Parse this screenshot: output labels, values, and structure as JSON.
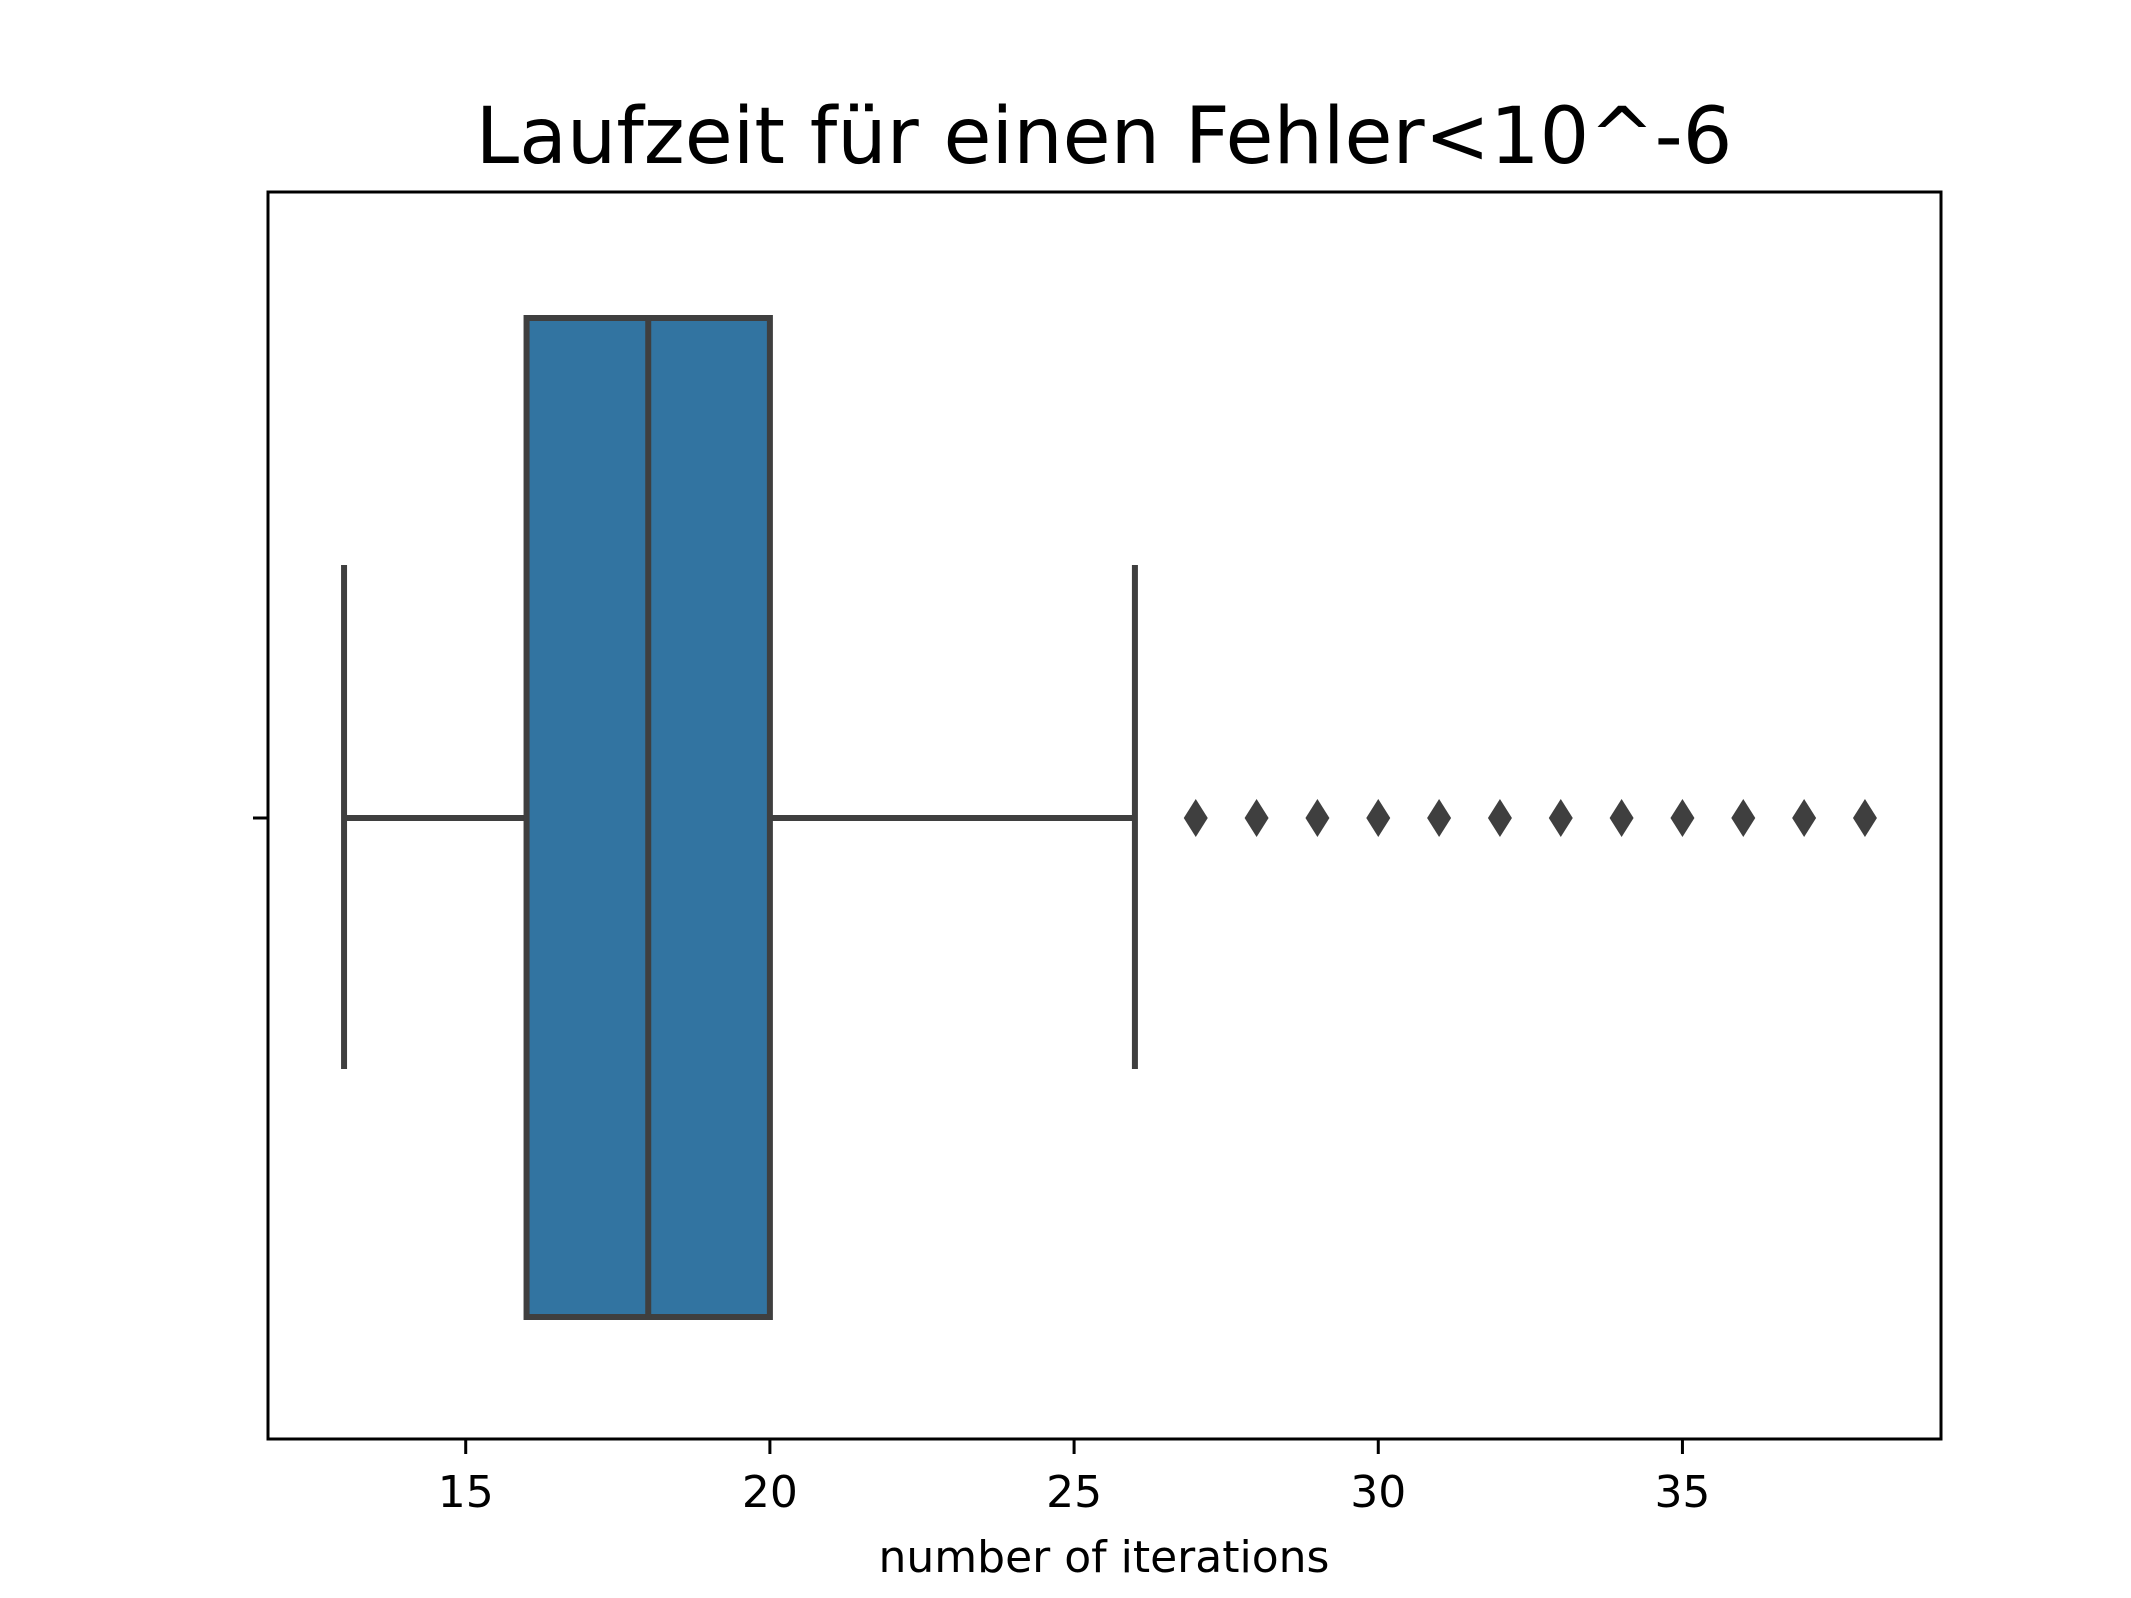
{
  "chart_data": {
    "type": "box",
    "title": "Laufzeit für einen Fehler<10^-6",
    "xlabel": "number of iterations",
    "ylabel": "",
    "xlim": [
      11.75,
      39.25
    ],
    "xticks": [
      15,
      20,
      25,
      30,
      35
    ],
    "orientation": "horizontal",
    "grid": false,
    "box": {
      "whisker_low": 13,
      "q1": 16,
      "median": 18,
      "q3": 20,
      "whisker_high": 26,
      "outliers": [
        27,
        28,
        29,
        30,
        31,
        32,
        33,
        34,
        35,
        36,
        37,
        38
      ]
    },
    "colors": {
      "box_fill": "#3274a1",
      "line": "#3f3f3f",
      "axes": "#000000"
    }
  }
}
